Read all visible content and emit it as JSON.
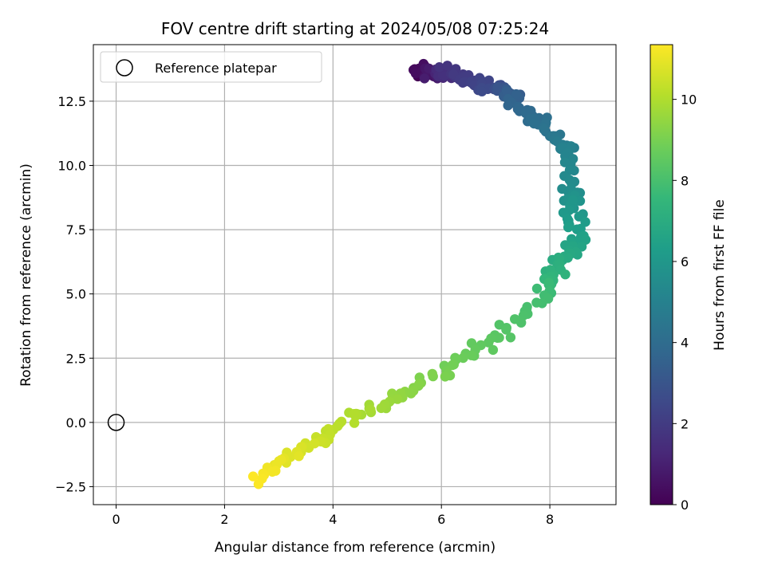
{
  "chart_data": {
    "type": "scatter",
    "title": "FOV centre drift starting at 2024/05/08 07:25:24",
    "xlabel": "Angular distance from reference (arcmin)",
    "ylabel": "Rotation from reference (arcmin)",
    "xlim": [
      -0.42,
      9.22
    ],
    "ylim": [
      -3.2,
      14.7
    ],
    "xticks": [
      0,
      2,
      4,
      6,
      8
    ],
    "xtick_labels": [
      "0",
      "2",
      "4",
      "6",
      "8"
    ],
    "yticks": [
      -2.5,
      0.0,
      2.5,
      5.0,
      7.5,
      10.0,
      12.5
    ],
    "ytick_labels": [
      "−2.5",
      "0.0",
      "2.5",
      "5.0",
      "7.5",
      "10.0",
      "12.5"
    ],
    "grid": true,
    "legend": {
      "location": "upper-left",
      "entries": [
        "Reference platepar"
      ]
    },
    "reference_point": {
      "x": 0.0,
      "y": 0.0,
      "marker": "open-circle"
    },
    "colorbar": {
      "label": "Hours from first FF file",
      "range": [
        0,
        11.35
      ],
      "ticks": [
        0,
        2,
        4,
        6,
        8,
        10
      ],
      "tick_labels": [
        "0",
        "2",
        "4",
        "6",
        "8",
        "10"
      ],
      "colormap": "viridis"
    },
    "trajectory_keypoints": [
      {
        "t": 0.0,
        "x": 5.5,
        "y": 13.8
      },
      {
        "t": 1.0,
        "x": 5.9,
        "y": 13.6
      },
      {
        "t": 1.8,
        "x": 6.2,
        "y": 13.6
      },
      {
        "t": 2.8,
        "x": 7.1,
        "y": 12.9
      },
      {
        "t": 3.6,
        "x": 7.3,
        "y": 12.6
      },
      {
        "t": 4.6,
        "x": 8.2,
        "y": 10.9
      },
      {
        "t": 5.1,
        "x": 8.4,
        "y": 10.5
      },
      {
        "t": 5.6,
        "x": 8.4,
        "y": 8.8
      },
      {
        "t": 6.0,
        "x": 8.4,
        "y": 8.3
      },
      {
        "t": 6.5,
        "x": 8.5,
        "y": 7.0
      },
      {
        "t": 7.2,
        "x": 8.1,
        "y": 6.0
      },
      {
        "t": 7.8,
        "x": 7.9,
        "y": 5.1
      },
      {
        "t": 8.3,
        "x": 7.1,
        "y": 3.5
      },
      {
        "t": 8.8,
        "x": 6.3,
        "y": 2.4
      },
      {
        "t": 9.3,
        "x": 5.5,
        "y": 1.3
      },
      {
        "t": 9.9,
        "x": 4.5,
        "y": 0.3
      },
      {
        "t": 10.5,
        "x": 3.7,
        "y": -0.8
      },
      {
        "t": 11.0,
        "x": 3.0,
        "y": -1.6
      },
      {
        "t": 11.35,
        "x": 2.6,
        "y": -2.2
      }
    ],
    "point_count": 340,
    "spread": {
      "x": 0.13,
      "y": 0.18
    }
  }
}
